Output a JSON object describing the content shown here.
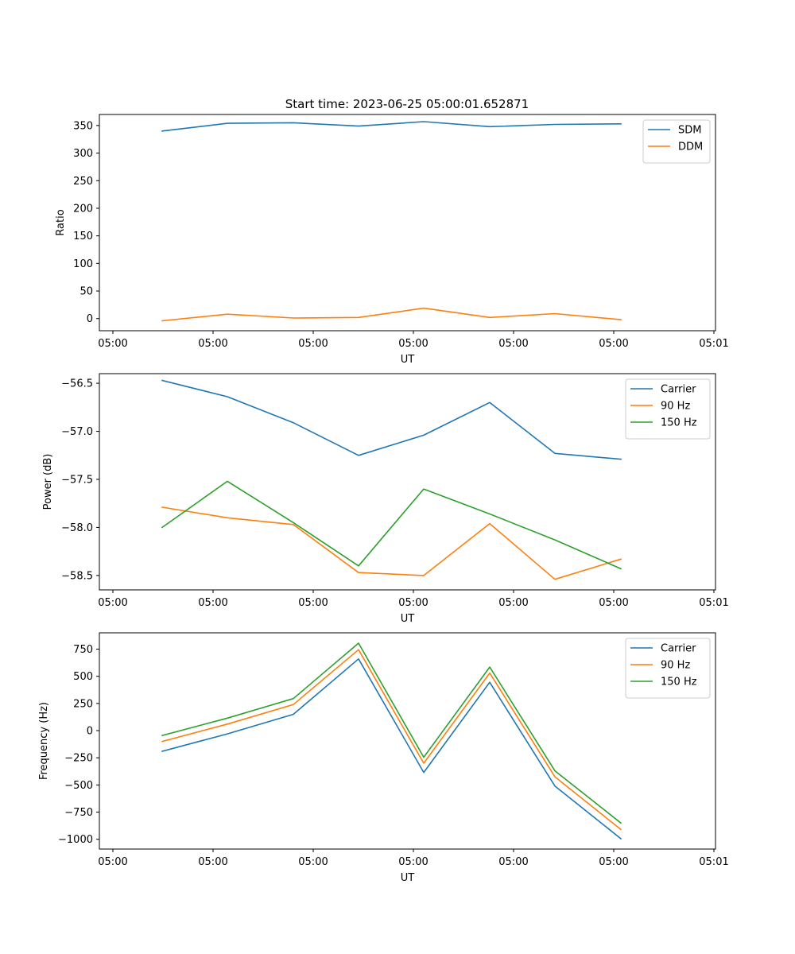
{
  "figure": {
    "title": "Start time: 2023-06-25 05:00:01.652871"
  },
  "colors": {
    "blue": "#1f77b4",
    "orange": "#ff7f0e",
    "green": "#2ca02c"
  },
  "chart_data": [
    {
      "type": "line",
      "title": "Start time: 2023-06-25 05:00:01.652871",
      "xlabel": "UT",
      "ylabel": "Ratio",
      "x_tick_labels": [
        "05:00",
        "05:00",
        "05:00",
        "05:00",
        "05:00",
        "05:00",
        "05:01"
      ],
      "y_ticks": [
        0,
        50,
        100,
        150,
        200,
        250,
        300,
        350
      ],
      "ylim": [
        -22,
        370
      ],
      "legend": "top-right",
      "series": [
        {
          "name": "SDM",
          "color": "#1f77b4",
          "values": [
            340,
            354,
            355,
            349,
            357,
            348,
            352,
            353
          ]
        },
        {
          "name": "DDM",
          "color": "#ff7f0e",
          "values": [
            -4,
            8,
            1,
            2,
            19,
            2,
            9,
            -2
          ]
        }
      ]
    },
    {
      "type": "line",
      "title": "",
      "xlabel": "UT",
      "ylabel": "Power (dB)",
      "x_tick_labels": [
        "05:00",
        "05:00",
        "05:00",
        "05:00",
        "05:00",
        "05:00",
        "05:01"
      ],
      "y_ticks": [
        -56.5,
        -57.0,
        -57.5,
        -58.0,
        -58.5
      ],
      "ylim": [
        -58.65,
        -56.4
      ],
      "legend": "top-right",
      "series": [
        {
          "name": "Carrier",
          "color": "#1f77b4",
          "values": [
            -56.47,
            -56.64,
            -56.91,
            -57.25,
            -57.04,
            -56.7,
            -57.23,
            -57.29
          ]
        },
        {
          "name": "90 Hz",
          "color": "#ff7f0e",
          "values": [
            -57.79,
            -57.9,
            -57.97,
            -58.47,
            -58.5,
            -57.96,
            -58.54,
            -58.33
          ]
        },
        {
          "name": "150 Hz",
          "color": "#2ca02c",
          "values": [
            -58.0,
            -57.52,
            -57.95,
            -58.4,
            -57.6,
            -57.86,
            -58.13,
            -58.43
          ]
        }
      ]
    },
    {
      "type": "line",
      "title": "",
      "xlabel": "UT",
      "ylabel": "Frequency (Hz)",
      "x_tick_labels": [
        "05:00",
        "05:00",
        "05:00",
        "05:00",
        "05:00",
        "05:00",
        "05:01"
      ],
      "y_ticks": [
        750,
        500,
        250,
        0,
        -250,
        -500,
        -750,
        -1000
      ],
      "ylim": [
        -1090,
        900
      ],
      "legend": "top-right",
      "series": [
        {
          "name": "Carrier",
          "color": "#1f77b4",
          "values": [
            -190,
            -30,
            150,
            660,
            -385,
            445,
            -510,
            -995
          ]
        },
        {
          "name": "90 Hz",
          "color": "#ff7f0e",
          "values": [
            -100,
            60,
            240,
            745,
            -300,
            530,
            -425,
            -910
          ]
        },
        {
          "name": "150 Hz",
          "color": "#2ca02c",
          "values": [
            -45,
            115,
            295,
            805,
            -245,
            585,
            -370,
            -850
          ]
        }
      ]
    }
  ]
}
